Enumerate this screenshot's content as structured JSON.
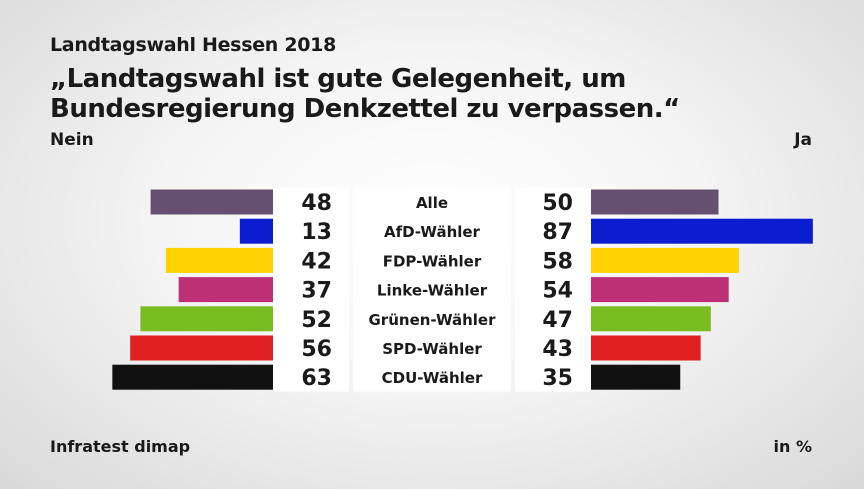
{
  "chart_data": {
    "type": "bar",
    "supertitle": "Landtagswahl Hessen 2018",
    "title": "„Landtagswahl ist gute Gelegenheit, um Bundesregierung Denkzettel zu verpassen.“",
    "left_label": "Nein",
    "right_label": "Ja",
    "source": "Infratest dimap",
    "unit": "in %",
    "categories": [
      "Alle",
      "AfD-Wähler",
      "FDP-Wähler",
      "Linke-Wähler",
      "Grünen-Wähler",
      "SPD-Wähler",
      "CDU-Wähler"
    ],
    "series": [
      {
        "name": "Nein",
        "values": [
          48,
          13,
          42,
          37,
          52,
          56,
          63
        ]
      },
      {
        "name": "Ja",
        "values": [
          50,
          87,
          58,
          54,
          47,
          43,
          35
        ]
      }
    ],
    "colors": [
      "#665070",
      "#0a1ecf",
      "#ffd200",
      "#be3076",
      "#78be20",
      "#e02020",
      "#111111"
    ],
    "xlim": [
      0,
      100
    ],
    "grid": false
  }
}
